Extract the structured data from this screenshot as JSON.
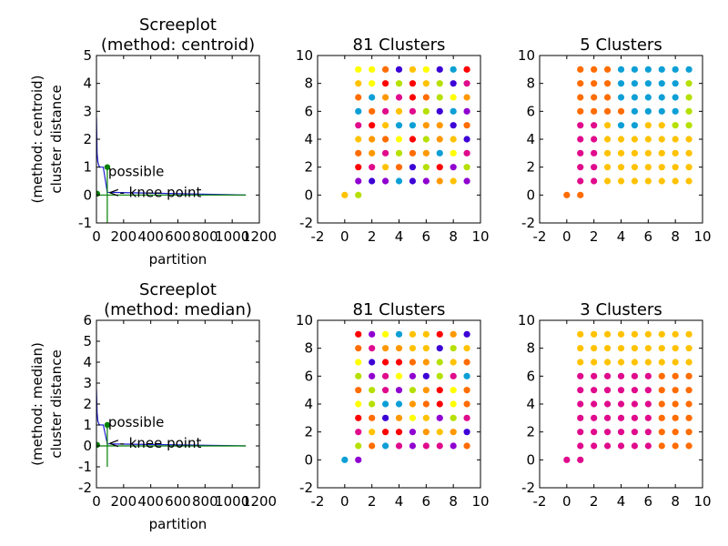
{
  "colors": {
    "scree_line": "#1e1ed2",
    "knee_line": "#007f00",
    "palette": [
      "#ff9800",
      "#ffc200",
      "#b5e000",
      "#0d9fd6",
      "#3c00d6",
      "#9000d0",
      "#e00a8c",
      "#ff0000",
      "#ff6c00",
      "#ffff00"
    ]
  },
  "chart_data": [
    {
      "id": "scree-centroid",
      "type": "line",
      "title": [
        "Screeplot",
        "(method: centroid)"
      ],
      "xlabel": "partition",
      "ylabel": [
        "(method: centroid)",
        "cluster distance"
      ],
      "xlim": [
        0,
        1200
      ],
      "ylim": [
        -1,
        5
      ],
      "xticks": [
        0,
        200,
        400,
        600,
        800,
        1000,
        1200
      ],
      "xtick_labels": [
        "0",
        "200",
        "400",
        "600",
        "800",
        "1000",
        "1200"
      ],
      "yticks": [
        -1,
        0,
        1,
        2,
        3,
        4,
        5
      ],
      "grid": false,
      "series": [
        {
          "color_key": "scree_line",
          "x": [
            0,
            5,
            10,
            18,
            25,
            35,
            50,
            80,
            1100
          ],
          "y": [
            2.8,
            1.5,
            1.2,
            1.05,
            1.0,
            1.0,
            1.0,
            0.1,
            0.0
          ]
        },
        {
          "color_key": "knee_line",
          "x": [
            0,
            1100
          ],
          "y": [
            0,
            0
          ]
        },
        {
          "color_key": "knee_line",
          "x": [
            80,
            80
          ],
          "y": [
            -1,
            1.05
          ]
        }
      ],
      "markers": [
        {
          "x": 5,
          "y": 0.05
        },
        {
          "x": 80,
          "y": 1.0
        }
      ],
      "annotation": {
        "lines": [
          "possible",
          "<- knee point"
        ],
        "x": 80,
        "y": 0.0
      }
    },
    {
      "id": "scatter-centroid-81",
      "type": "scatter",
      "title": "81 Clusters",
      "xlim": [
        -2,
        10
      ],
      "ylim": [
        -2,
        10
      ],
      "xticks": [
        -2,
        0,
        2,
        4,
        6,
        8,
        10
      ],
      "yticks": [
        -2,
        0,
        2,
        4,
        6,
        8,
        10
      ],
      "grid": false,
      "grid_x": [
        1,
        9
      ],
      "grid_y": [
        1,
        9
      ],
      "extra_points": [
        {
          "x": 0,
          "y": 0,
          "c": 1
        },
        {
          "x": 1,
          "y": 0,
          "c": 2
        }
      ],
      "color_grid": [
        [
          9,
          9,
          8,
          4,
          1,
          9,
          4,
          3,
          7
        ],
        [
          1,
          9,
          7,
          2,
          7,
          1,
          2,
          4,
          6
        ],
        [
          8,
          3,
          0,
          6,
          7,
          8,
          2,
          9,
          0
        ],
        [
          3,
          8,
          6,
          1,
          6,
          2,
          4,
          3,
          5
        ],
        [
          6,
          7,
          1,
          3,
          3,
          0,
          0,
          4,
          8
        ],
        [
          1,
          0,
          8,
          9,
          7,
          2,
          0,
          1,
          4
        ],
        [
          8,
          0,
          6,
          2,
          8,
          0,
          3,
          9,
          6
        ],
        [
          7,
          6,
          1,
          8,
          4,
          2,
          7,
          5,
          2
        ],
        [
          5,
          4,
          5,
          3,
          4,
          5,
          0,
          1,
          5
        ]
      ]
    },
    {
      "id": "scatter-centroid-5",
      "type": "scatter",
      "title": "5 Clusters",
      "xlim": [
        -2,
        10
      ],
      "ylim": [
        -2,
        10
      ],
      "xticks": [
        -2,
        0,
        2,
        4,
        6,
        8,
        10
      ],
      "yticks": [
        -2,
        0,
        2,
        4,
        6,
        8,
        10
      ],
      "grid": false,
      "grid_x": [
        1,
        9
      ],
      "grid_y": [
        1,
        9
      ],
      "extra_points": [
        {
          "x": 0,
          "y": 0,
          "c": 8
        },
        {
          "x": 1,
          "y": 0,
          "c": 8
        }
      ],
      "color_grid": [
        [
          8,
          8,
          8,
          3,
          3,
          3,
          3,
          3,
          3
        ],
        [
          8,
          8,
          8,
          3,
          3,
          3,
          3,
          3,
          2
        ],
        [
          8,
          8,
          8,
          3,
          3,
          3,
          3,
          3,
          2
        ],
        [
          8,
          8,
          8,
          8,
          3,
          3,
          3,
          3,
          2
        ],
        [
          6,
          6,
          1,
          3,
          3,
          1,
          1,
          2,
          2
        ],
        [
          6,
          6,
          1,
          1,
          1,
          1,
          1,
          1,
          1
        ],
        [
          6,
          6,
          1,
          1,
          1,
          1,
          1,
          1,
          1
        ],
        [
          6,
          6,
          1,
          1,
          1,
          1,
          1,
          1,
          1
        ],
        [
          6,
          6,
          1,
          1,
          1,
          1,
          1,
          1,
          1
        ]
      ]
    },
    {
      "id": "scree-median",
      "type": "line",
      "title": [
        "Screeplot",
        "(method: median)"
      ],
      "xlabel": "partition",
      "ylabel": [
        "(method: median)",
        "cluster distance"
      ],
      "xlim": [
        0,
        1200
      ],
      "ylim": [
        -2,
        6
      ],
      "xticks": [
        0,
        200,
        400,
        600,
        800,
        1000,
        1200
      ],
      "xtick_labels": [
        "0",
        "200",
        "400",
        "600",
        "800",
        "1000",
        "1200"
      ],
      "yticks": [
        -2,
        -1,
        0,
        1,
        2,
        3,
        4,
        5,
        6
      ],
      "grid": false,
      "series": [
        {
          "color_key": "scree_line",
          "x": [
            0,
            5,
            10,
            18,
            25,
            35,
            50,
            80,
            1100
          ],
          "y": [
            2.7,
            1.6,
            1.2,
            1.05,
            1.0,
            1.0,
            1.0,
            0.1,
            0.0
          ]
        },
        {
          "color_key": "knee_line",
          "x": [
            0,
            1100
          ],
          "y": [
            0,
            0
          ]
        },
        {
          "color_key": "knee_line",
          "x": [
            80,
            80
          ],
          "y": [
            -1,
            1.05
          ]
        }
      ],
      "markers": [
        {
          "x": 5,
          "y": 0.05
        },
        {
          "x": 80,
          "y": 1.0
        }
      ],
      "annotation": {
        "lines": [
          "possible",
          "<- knee point"
        ],
        "x": 80,
        "y": 0.0
      }
    },
    {
      "id": "scatter-median-81",
      "type": "scatter",
      "title": "81 Clusters",
      "xlim": [
        -2,
        10
      ],
      "ylim": [
        -2,
        10
      ],
      "xticks": [
        -2,
        0,
        2,
        4,
        6,
        8,
        10
      ],
      "yticks": [
        -2,
        0,
        2,
        4,
        6,
        8,
        10
      ],
      "grid": false,
      "grid_x": [
        1,
        9
      ],
      "grid_y": [
        1,
        9
      ],
      "extra_points": [
        {
          "x": 0,
          "y": 0,
          "c": 3
        },
        {
          "x": 1,
          "y": 0,
          "c": 5
        }
      ],
      "color_grid": [
        [
          7,
          5,
          9,
          3,
          1,
          1,
          7,
          0,
          4
        ],
        [
          8,
          6,
          0,
          0,
          1,
          1,
          4,
          2,
          1
        ],
        [
          9,
          4,
          7,
          7,
          8,
          0,
          2,
          1,
          8
        ],
        [
          2,
          5,
          6,
          9,
          5,
          4,
          2,
          6,
          3
        ],
        [
          8,
          2,
          6,
          5,
          2,
          0,
          7,
          9,
          8
        ],
        [
          9,
          2,
          3,
          3,
          0,
          8,
          7,
          9,
          8
        ],
        [
          7,
          8,
          4,
          0,
          9,
          1,
          5,
          2,
          6
        ],
        [
          6,
          1,
          7,
          7,
          5,
          0,
          1,
          0,
          4
        ],
        [
          2,
          8,
          3,
          6,
          5,
          6,
          6,
          5,
          8
        ]
      ]
    },
    {
      "id": "scatter-median-3",
      "type": "scatter",
      "title": "3 Clusters",
      "xlim": [
        -2,
        10
      ],
      "ylim": [
        -2,
        10
      ],
      "xticks": [
        -2,
        0,
        2,
        4,
        6,
        8,
        10
      ],
      "yticks": [
        -2,
        0,
        2,
        4,
        6,
        8,
        10
      ],
      "grid": false,
      "grid_x": [
        1,
        9
      ],
      "grid_y": [
        1,
        9
      ],
      "extra_points": [
        {
          "x": 0,
          "y": 0,
          "c": 6
        },
        {
          "x": 1,
          "y": 0,
          "c": 6
        }
      ],
      "color_grid": [
        [
          1,
          1,
          1,
          1,
          1,
          1,
          1,
          1,
          1
        ],
        [
          1,
          1,
          1,
          1,
          1,
          1,
          1,
          1,
          1
        ],
        [
          1,
          1,
          1,
          1,
          1,
          1,
          1,
          1,
          1
        ],
        [
          6,
          6,
          6,
          6,
          6,
          6,
          8,
          8,
          8
        ],
        [
          6,
          6,
          6,
          6,
          6,
          6,
          8,
          8,
          8
        ],
        [
          6,
          6,
          6,
          6,
          6,
          6,
          8,
          8,
          8
        ],
        [
          6,
          6,
          6,
          6,
          6,
          6,
          8,
          8,
          8
        ],
        [
          6,
          6,
          6,
          6,
          6,
          6,
          8,
          8,
          8
        ],
        [
          6,
          6,
          6,
          6,
          6,
          6,
          8,
          8,
          8
        ]
      ]
    }
  ]
}
